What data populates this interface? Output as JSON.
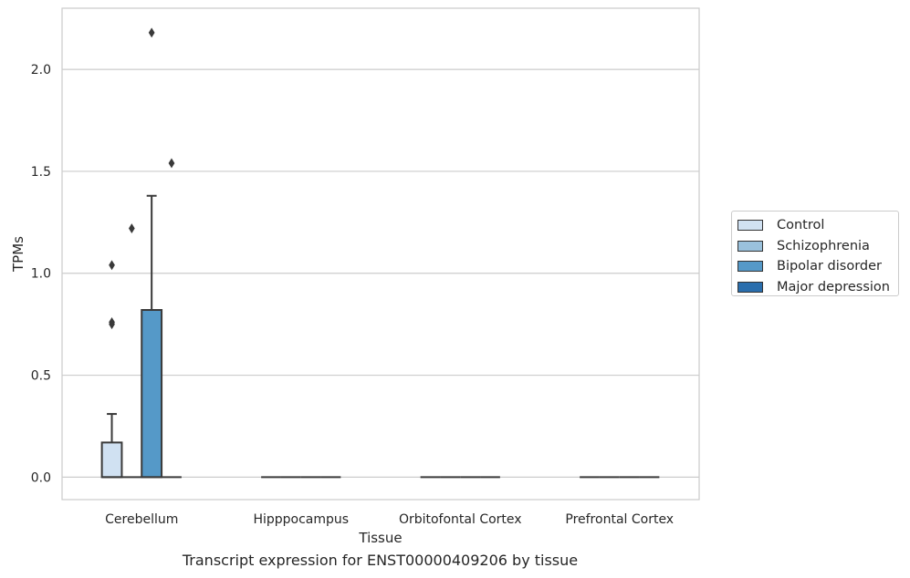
{
  "chart_data": {
    "type": "box",
    "xlabel": "Tissue",
    "ylabel": "TPMs",
    "caption": "Transcript expression for ENST00000409206 by tissue",
    "categories": [
      "Cerebellum",
      "Hipppocampus",
      "Orbitofontal Cortex",
      "Prefrontal Cortex"
    ],
    "ylim": [
      -0.11,
      2.3
    ],
    "yticks": [
      0.0,
      0.5,
      1.0,
      1.5,
      2.0
    ],
    "ytick_labels": [
      "0.0",
      "0.5",
      "1.0",
      "1.5",
      "2.0"
    ],
    "grid": "horizontal",
    "legend_position": "right",
    "series": [
      {
        "name": "Control",
        "color": "#d0e1f2",
        "boxes": [
          {
            "q1": 0.0,
            "median": 0.0,
            "q3": 0.17,
            "whisker_low": 0.0,
            "whisker_high": 0.31,
            "outliers": [
              0.75,
              0.76,
              1.04
            ]
          },
          {
            "q1": 0.0,
            "median": 0.0,
            "q3": 0.0,
            "whisker_low": 0.0,
            "whisker_high": 0.0,
            "outliers": []
          },
          {
            "q1": 0.0,
            "median": 0.0,
            "q3": 0.0,
            "whisker_low": 0.0,
            "whisker_high": 0.0,
            "outliers": []
          },
          {
            "q1": 0.0,
            "median": 0.0,
            "q3": 0.0,
            "whisker_low": 0.0,
            "whisker_high": 0.0,
            "outliers": []
          }
        ]
      },
      {
        "name": "Schizophrenia",
        "color": "#9ac1dc",
        "boxes": [
          {
            "q1": 0.0,
            "median": 0.0,
            "q3": 0.0,
            "whisker_low": 0.0,
            "whisker_high": 0.0,
            "outliers": [
              1.22
            ]
          },
          {
            "q1": 0.0,
            "median": 0.0,
            "q3": 0.0,
            "whisker_low": 0.0,
            "whisker_high": 0.0,
            "outliers": []
          },
          {
            "q1": 0.0,
            "median": 0.0,
            "q3": 0.0,
            "whisker_low": 0.0,
            "whisker_high": 0.0,
            "outliers": []
          },
          {
            "q1": 0.0,
            "median": 0.0,
            "q3": 0.0,
            "whisker_low": 0.0,
            "whisker_high": 0.0,
            "outliers": []
          }
        ]
      },
      {
        "name": "Bipolar disorder",
        "color": "#5599c8",
        "boxes": [
          {
            "q1": 0.0,
            "median": 0.0,
            "q3": 0.82,
            "whisker_low": 0.0,
            "whisker_high": 1.38,
            "outliers": [
              2.18
            ]
          },
          {
            "q1": 0.0,
            "median": 0.0,
            "q3": 0.0,
            "whisker_low": 0.0,
            "whisker_high": 0.0,
            "outliers": []
          },
          {
            "q1": 0.0,
            "median": 0.0,
            "q3": 0.0,
            "whisker_low": 0.0,
            "whisker_high": 0.0,
            "outliers": []
          },
          {
            "q1": 0.0,
            "median": 0.0,
            "q3": 0.0,
            "whisker_low": 0.0,
            "whisker_high": 0.0,
            "outliers": []
          }
        ]
      },
      {
        "name": "Major depression",
        "color": "#2a6ead",
        "boxes": [
          {
            "q1": 0.0,
            "median": 0.0,
            "q3": 0.0,
            "whisker_low": 0.0,
            "whisker_high": 0.0,
            "outliers": [
              1.54
            ]
          },
          {
            "q1": 0.0,
            "median": 0.0,
            "q3": 0.0,
            "whisker_low": 0.0,
            "whisker_high": 0.0,
            "outliers": []
          },
          {
            "q1": 0.0,
            "median": 0.0,
            "q3": 0.0,
            "whisker_low": 0.0,
            "whisker_high": 0.0,
            "outliers": []
          },
          {
            "q1": 0.0,
            "median": 0.0,
            "q3": 0.0,
            "whisker_low": 0.0,
            "whisker_high": 0.0,
            "outliers": []
          }
        ]
      }
    ]
  }
}
